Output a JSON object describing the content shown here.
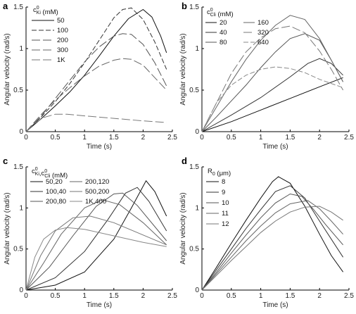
{
  "chart_data": [
    {
      "panel": "a",
      "type": "line",
      "xlabel": "Time (s)",
      "ylabel": "Angular velocity (rad/s)",
      "xlim": [
        0,
        2.5
      ],
      "ylim": [
        0,
        1.5
      ],
      "xticks": [
        "0",
        "0.5",
        "1",
        "1.5",
        "2",
        "2.5"
      ],
      "yticks": [
        "0",
        "0.5",
        "1",
        "1.5"
      ],
      "legend_title": "c0_Ki (mM)",
      "legend_position": "top-left",
      "series": [
        {
          "name": "50",
          "dash": "solid",
          "x": [
            0,
            0.25,
            0.5,
            0.75,
            1,
            1.25,
            1.5,
            1.75,
            2,
            2.15,
            2.3,
            2.4
          ],
          "y": [
            0,
            0.15,
            0.31,
            0.48,
            0.68,
            0.91,
            1.15,
            1.36,
            1.47,
            1.38,
            1.15,
            0.95
          ]
        },
        {
          "name": "100",
          "dash": "dash",
          "x": [
            0,
            0.25,
            0.5,
            0.75,
            1,
            1.25,
            1.5,
            1.65,
            1.8,
            2,
            2.2,
            2.4
          ],
          "y": [
            0,
            0.17,
            0.36,
            0.58,
            0.83,
            1.1,
            1.37,
            1.47,
            1.49,
            1.35,
            1.08,
            0.75
          ]
        },
        {
          "name": "200",
          "dash": "longdash",
          "x": [
            0,
            0.25,
            0.5,
            0.75,
            1,
            1.25,
            1.5,
            1.65,
            1.8,
            2,
            2.2,
            2.4
          ],
          "y": [
            0,
            0.18,
            0.4,
            0.62,
            0.84,
            1.02,
            1.15,
            1.18,
            1.17,
            1.05,
            0.83,
            0.55
          ]
        },
        {
          "name": "300",
          "dash": "longdash",
          "x": [
            0,
            0.25,
            0.5,
            0.75,
            1,
            1.25,
            1.5,
            1.65,
            1.8,
            2,
            2.2,
            2.4
          ],
          "y": [
            0,
            0.2,
            0.38,
            0.53,
            0.67,
            0.79,
            0.86,
            0.88,
            0.87,
            0.8,
            0.65,
            0.5
          ]
        },
        {
          "name": "1K",
          "dash": "longdash",
          "x": [
            0,
            0.15,
            0.3,
            0.5,
            0.7,
            1,
            1.5,
            2,
            2.4
          ],
          "y": [
            0,
            0.1,
            0.17,
            0.21,
            0.21,
            0.19,
            0.16,
            0.13,
            0.11
          ]
        }
      ]
    },
    {
      "panel": "b",
      "type": "line",
      "xlabel": "Time (s)",
      "ylabel": "Angular velocity (rad/s)",
      "xlim": [
        0,
        2.5
      ],
      "ylim": [
        0,
        1.5
      ],
      "xticks": [
        "0",
        "0.5",
        "1",
        "1.5",
        "2",
        "2.5"
      ],
      "yticks": [
        "0",
        "0.5",
        "1",
        "1.5"
      ],
      "legend_title": "c0_Cli (mM)",
      "legend_position": "top-left",
      "series": [
        {
          "name": "20",
          "dash": "solid",
          "x": [
            0,
            0.5,
            1,
            1.5,
            2,
            2.4
          ],
          "y": [
            0,
            0.12,
            0.26,
            0.4,
            0.54,
            0.65
          ]
        },
        {
          "name": "40",
          "dash": "solid",
          "x": [
            0,
            0.5,
            1,
            1.5,
            1.8,
            2,
            2.2,
            2.4
          ],
          "y": [
            0,
            0.2,
            0.41,
            0.66,
            0.82,
            0.88,
            0.82,
            0.68
          ]
        },
        {
          "name": "80",
          "dash": "solid",
          "x": [
            0,
            0.25,
            0.5,
            0.75,
            1,
            1.25,
            1.5,
            1.75,
            2,
            2.2,
            2.4
          ],
          "y": [
            0,
            0.18,
            0.37,
            0.56,
            0.77,
            0.96,
            1.12,
            1.18,
            1.1,
            0.86,
            0.6
          ]
        },
        {
          "name": "160",
          "dash": "solid",
          "x": [
            0,
            0.25,
            0.5,
            0.75,
            1,
            1.25,
            1.5,
            1.75,
            2,
            2.2,
            2.4
          ],
          "y": [
            0,
            0.3,
            0.6,
            0.87,
            1.1,
            1.28,
            1.4,
            1.35,
            1.12,
            0.86,
            0.6
          ]
        },
        {
          "name": "320",
          "dash": "longdash",
          "x": [
            0,
            0.25,
            0.5,
            0.75,
            1,
            1.25,
            1.5,
            1.75,
            2,
            2.2,
            2.4
          ],
          "y": [
            0,
            0.35,
            0.7,
            0.96,
            1.13,
            1.24,
            1.27,
            1.19,
            0.97,
            0.75,
            0.5
          ]
        },
        {
          "name": "640",
          "dash": "dash",
          "x": [
            0,
            0.25,
            0.5,
            0.75,
            1,
            1.25,
            1.5,
            1.75,
            2,
            2.2,
            2.4
          ],
          "y": [
            0,
            0.35,
            0.56,
            0.68,
            0.75,
            0.78,
            0.76,
            0.71,
            0.63,
            0.58,
            0.53
          ]
        }
      ]
    },
    {
      "panel": "c",
      "type": "line",
      "xlabel": "Time (s)",
      "ylabel": "Angular velocity (rad/s)",
      "xlim": [
        0,
        2.5
      ],
      "ylim": [
        0,
        1.5
      ],
      "xticks": [
        "0",
        "0.5",
        "1",
        "1.5",
        "2",
        "2.5"
      ],
      "yticks": [
        "0",
        "0.5",
        "1",
        "1.5"
      ],
      "legend_title": "c0_Ki,c0_Cli (mM)",
      "legend_position": "top-left",
      "series": [
        {
          "name": "50,20",
          "dash": "solid",
          "x": [
            0,
            0.5,
            1,
            1.5,
            1.8,
            2.05,
            2.2,
            2.4
          ],
          "y": [
            0,
            0.06,
            0.22,
            0.62,
            1.0,
            1.33,
            1.2,
            0.9
          ]
        },
        {
          "name": "100,40",
          "dash": "solid",
          "x": [
            0,
            0.5,
            1,
            1.4,
            1.7,
            1.9,
            2.1,
            2.4
          ],
          "y": [
            0,
            0.15,
            0.47,
            0.86,
            1.18,
            1.25,
            1.08,
            0.72
          ]
        },
        {
          "name": "200,80",
          "dash": "solid",
          "x": [
            0,
            0.4,
            0.8,
            1.2,
            1.5,
            1.65,
            1.9,
            2.4
          ],
          "y": [
            0,
            0.28,
            0.66,
            1.02,
            1.17,
            1.18,
            1.03,
            0.6
          ]
        },
        {
          "name": "200,120",
          "dash": "solid",
          "x": [
            0,
            0.3,
            0.6,
            1.0,
            1.3,
            1.6,
            2.0,
            2.4
          ],
          "y": [
            0,
            0.33,
            0.68,
            1.0,
            1.1,
            1.04,
            0.82,
            0.55
          ]
        },
        {
          "name": "500,200",
          "dash": "solid",
          "x": [
            0,
            0.25,
            0.5,
            0.8,
            1.1,
            1.5,
            2.0,
            2.4
          ],
          "y": [
            0,
            0.42,
            0.72,
            0.88,
            0.9,
            0.82,
            0.67,
            0.55
          ]
        },
        {
          "name": "1K,400",
          "dash": "solid",
          "x": [
            0,
            0.15,
            0.3,
            0.5,
            0.7,
            1.0,
            1.5,
            2.0,
            2.4
          ],
          "y": [
            0,
            0.4,
            0.62,
            0.73,
            0.76,
            0.74,
            0.66,
            0.58,
            0.53
          ]
        }
      ]
    },
    {
      "panel": "d",
      "type": "line",
      "xlabel": "Time (s)",
      "ylabel": "Angular velocity (rad/s)",
      "xlim": [
        0,
        2.5
      ],
      "ylim": [
        0,
        1.5
      ],
      "xticks": [
        "0",
        "0.5",
        "1",
        "1.5",
        "2",
        "2.5"
      ],
      "yticks": [
        "0",
        "0.5",
        "1",
        "1.5"
      ],
      "legend_title": "R0 (μm)",
      "legend_position": "top-left",
      "series": [
        {
          "name": "8",
          "dash": "solid",
          "x": [
            0,
            0.25,
            0.5,
            0.75,
            1,
            1.2,
            1.3,
            1.5,
            1.75,
            2,
            2.2,
            2.4
          ],
          "y": [
            0,
            0.28,
            0.57,
            0.85,
            1.12,
            1.32,
            1.38,
            1.3,
            1.02,
            0.68,
            0.42,
            0.22
          ]
        },
        {
          "name": "9",
          "dash": "solid",
          "x": [
            0,
            0.25,
            0.5,
            0.75,
            1,
            1.25,
            1.5,
            1.75,
            2,
            2.2,
            2.4
          ],
          "y": [
            0,
            0.25,
            0.5,
            0.75,
            0.98,
            1.2,
            1.27,
            1.12,
            0.84,
            0.62,
            0.4
          ]
        },
        {
          "name": "10",
          "dash": "solid",
          "x": [
            0,
            0.25,
            0.5,
            0.75,
            1,
            1.25,
            1.5,
            1.7,
            1.9,
            2.1,
            2.4
          ],
          "y": [
            0,
            0.22,
            0.45,
            0.67,
            0.88,
            1.06,
            1.17,
            1.14,
            0.98,
            0.8,
            0.55
          ]
        },
        {
          "name": "11",
          "dash": "solid",
          "x": [
            0,
            0.25,
            0.5,
            0.75,
            1,
            1.25,
            1.5,
            1.8,
            2.0,
            2.2,
            2.4
          ],
          "y": [
            0,
            0.2,
            0.4,
            0.6,
            0.78,
            0.94,
            1.05,
            1.09,
            0.99,
            0.84,
            0.68
          ]
        },
        {
          "name": "12",
          "dash": "solid",
          "x": [
            0,
            0.25,
            0.5,
            0.75,
            1,
            1.25,
            1.5,
            1.75,
            2,
            2.2,
            2.4
          ],
          "y": [
            0,
            0.18,
            0.36,
            0.53,
            0.7,
            0.84,
            0.95,
            1.01,
            1.02,
            0.95,
            0.85
          ]
        }
      ]
    }
  ]
}
